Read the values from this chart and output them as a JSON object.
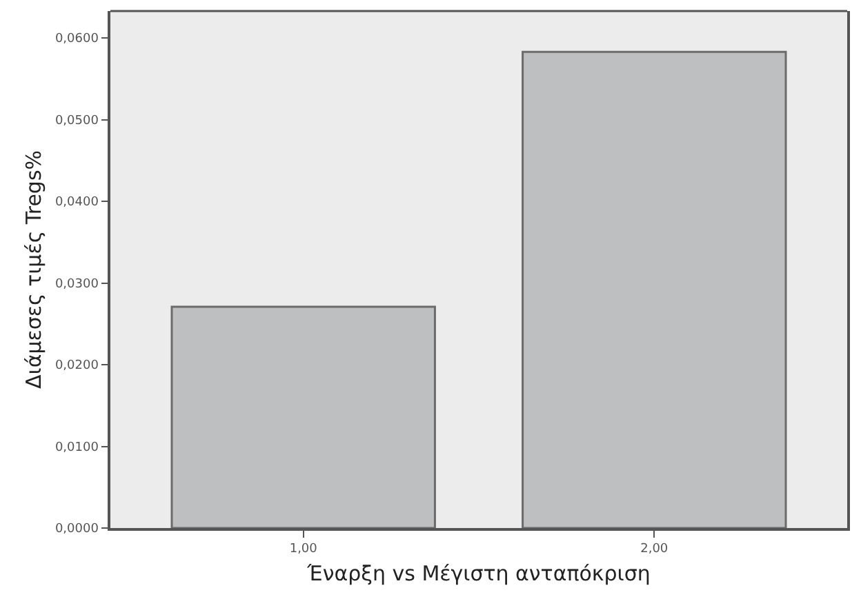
{
  "chart_data": {
    "type": "bar",
    "xlabel": "Έναρξη vs Μέγιστη ανταπόκριση",
    "ylabel": "Διάμεσες τιμές Tregs%",
    "categories": [
      "1,00",
      "2,00"
    ],
    "values": [
      0.0271,
      0.0583
    ],
    "color": "#bebfc1",
    "ylim": [
      0,
      0.0633
    ],
    "yticks": [
      {
        "value": 0,
        "label": "0,0000"
      },
      {
        "value": 0.01,
        "label": "0,0100"
      },
      {
        "value": 0.02,
        "label": "0,0200"
      },
      {
        "value": 0.03,
        "label": "0,0300"
      },
      {
        "value": 0.04,
        "label": "0,0400"
      },
      {
        "value": 0.05,
        "label": "0,0500"
      },
      {
        "value": 0.06,
        "label": "0,0600"
      }
    ],
    "grid": false,
    "legend": false
  }
}
